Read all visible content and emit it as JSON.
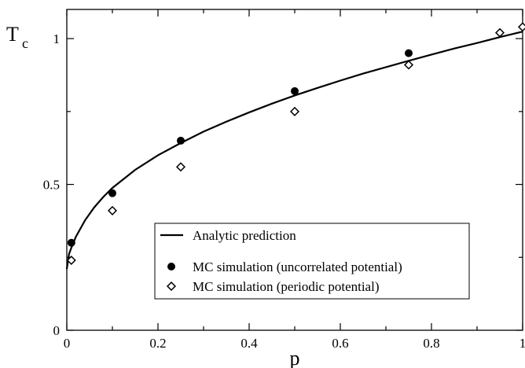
{
  "chart_data": {
    "type": "scatter",
    "xlabel": "p",
    "ylabel": "T",
    "ylabel_subscript": "c",
    "xlim": [
      0,
      1
    ],
    "ylim": [
      0,
      1.1
    ],
    "x_ticks": [
      0,
      0.2,
      0.4,
      0.6,
      0.8,
      1
    ],
    "x_tick_labels": [
      "0",
      "0.2",
      "0.4",
      "0.6",
      "0.8",
      "1"
    ],
    "y_ticks": [
      0,
      0.5,
      1
    ],
    "y_tick_labels": [
      "0",
      "0.5",
      "1"
    ],
    "grid": false,
    "legend_position": "bottom-right",
    "series": [
      {
        "name": "Analytic prediction",
        "type": "line",
        "color": "#000000",
        "x": [
          0,
          0.005,
          0.01,
          0.02,
          0.04,
          0.06,
          0.08,
          0.1,
          0.15,
          0.2,
          0.25,
          0.3,
          0.35,
          0.4,
          0.45,
          0.5,
          0.55,
          0.6,
          0.65,
          0.7,
          0.75,
          0.8,
          0.85,
          0.9,
          0.95,
          1.0
        ],
        "y": [
          0.21,
          0.262,
          0.283,
          0.321,
          0.377,
          0.421,
          0.457,
          0.488,
          0.55,
          0.6,
          0.642,
          0.681,
          0.715,
          0.747,
          0.777,
          0.805,
          0.831,
          0.856,
          0.88,
          0.902,
          0.924,
          0.945,
          0.966,
          0.985,
          1.005,
          1.024
        ]
      },
      {
        "name": "MC simulation (uncorrelated potential)",
        "type": "scatter",
        "marker": "filled-circle",
        "color": "#000000",
        "x": [
          0.01,
          0.1,
          0.25,
          0.5,
          0.75
        ],
        "y": [
          0.3,
          0.47,
          0.65,
          0.82,
          0.95
        ]
      },
      {
        "name": "MC simulation (periodic potential)",
        "type": "scatter",
        "marker": "open-diamond",
        "color": "#000000",
        "x": [
          0.01,
          0.1,
          0.25,
          0.5,
          0.75,
          0.95,
          1.0
        ],
        "y": [
          0.24,
          0.41,
          0.56,
          0.75,
          0.91,
          1.02,
          1.04
        ]
      }
    ]
  }
}
